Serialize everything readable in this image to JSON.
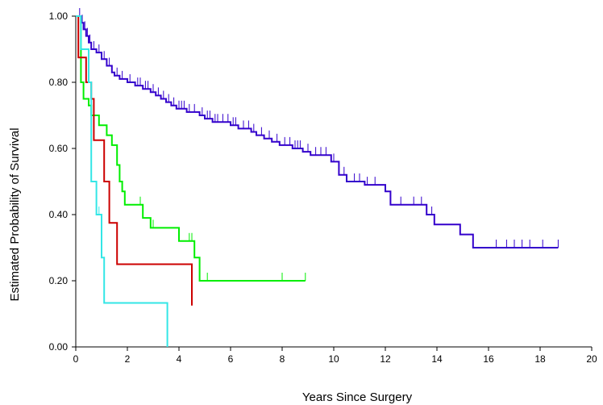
{
  "chart_data": {
    "type": "line",
    "subtype": "kaplan-meier step curves",
    "title": "",
    "xlabel": "Years  Since  Surgery",
    "ylabel": "Estimated  Probability  of  Survival",
    "xlim": [
      0,
      20
    ],
    "ylim": [
      0,
      1
    ],
    "x_ticks": [
      0,
      2,
      4,
      6,
      8,
      10,
      12,
      14,
      16,
      18,
      20
    ],
    "y_ticks": [
      0.0,
      0.2,
      0.4,
      0.6,
      0.8,
      1.0
    ],
    "x_tick_labels": [
      "0",
      "2",
      "4",
      "6",
      "8",
      "10",
      "12",
      "14",
      "16",
      "18",
      "20"
    ],
    "y_tick_labels": [
      "0.00",
      "0.20",
      "0.40",
      "0.60",
      "0.80",
      "1.00"
    ],
    "grid": false,
    "legend": "none",
    "series": [
      {
        "color": "#3300cc",
        "steps": [
          [
            0,
            1.0
          ],
          [
            0.2,
            0.98
          ],
          [
            0.3,
            0.96
          ],
          [
            0.4,
            0.94
          ],
          [
            0.5,
            0.92
          ],
          [
            0.6,
            0.9
          ],
          [
            0.8,
            0.89
          ],
          [
            1.0,
            0.87
          ],
          [
            1.2,
            0.85
          ],
          [
            1.4,
            0.83
          ],
          [
            1.5,
            0.82
          ],
          [
            1.7,
            0.81
          ],
          [
            2.0,
            0.8
          ],
          [
            2.3,
            0.79
          ],
          [
            2.6,
            0.78
          ],
          [
            2.9,
            0.77
          ],
          [
            3.1,
            0.76
          ],
          [
            3.3,
            0.75
          ],
          [
            3.5,
            0.74
          ],
          [
            3.7,
            0.73
          ],
          [
            3.9,
            0.72
          ],
          [
            4.3,
            0.71
          ],
          [
            4.8,
            0.7
          ],
          [
            5.0,
            0.69
          ],
          [
            5.3,
            0.68
          ],
          [
            6.0,
            0.67
          ],
          [
            6.3,
            0.66
          ],
          [
            6.8,
            0.65
          ],
          [
            7.0,
            0.64
          ],
          [
            7.3,
            0.63
          ],
          [
            7.6,
            0.62
          ],
          [
            7.9,
            0.61
          ],
          [
            8.4,
            0.6
          ],
          [
            8.8,
            0.59
          ],
          [
            9.1,
            0.58
          ],
          [
            9.9,
            0.56
          ],
          [
            10.2,
            0.52
          ],
          [
            10.5,
            0.5
          ],
          [
            11.2,
            0.49
          ],
          [
            12.0,
            0.47
          ],
          [
            12.2,
            0.43
          ],
          [
            13.6,
            0.4
          ],
          [
            13.9,
            0.37
          ],
          [
            14.9,
            0.34
          ],
          [
            15.4,
            0.3
          ],
          [
            18.7,
            0.3
          ]
        ],
        "censor_x": [
          0.15,
          0.25,
          0.35,
          0.45,
          0.55,
          0.7,
          0.9,
          1.1,
          1.3,
          1.6,
          1.8,
          2.1,
          2.4,
          2.5,
          2.7,
          2.8,
          3.0,
          3.2,
          3.4,
          3.6,
          3.8,
          4.0,
          4.1,
          4.2,
          4.4,
          4.6,
          4.9,
          5.1,
          5.2,
          5.4,
          5.5,
          5.7,
          5.9,
          6.1,
          6.2,
          6.5,
          6.7,
          6.9,
          7.2,
          7.5,
          7.8,
          8.1,
          8.3,
          8.5,
          8.6,
          8.7,
          9.0,
          9.3,
          9.5,
          9.7,
          10.0,
          10.4,
          10.8,
          11.0,
          11.3,
          11.6,
          12.6,
          13.1,
          13.4,
          13.8,
          16.3,
          16.7,
          17.0,
          17.3,
          17.6,
          18.1,
          18.7
        ]
      },
      {
        "color": "#00ee00",
        "steps": [
          [
            0,
            1.0
          ],
          [
            0.2,
            0.8
          ],
          [
            0.3,
            0.75
          ],
          [
            0.5,
            0.73
          ],
          [
            0.6,
            0.7
          ],
          [
            0.9,
            0.67
          ],
          [
            1.2,
            0.64
          ],
          [
            1.4,
            0.61
          ],
          [
            1.6,
            0.55
          ],
          [
            1.7,
            0.5
          ],
          [
            1.8,
            0.47
          ],
          [
            1.9,
            0.43
          ],
          [
            2.6,
            0.39
          ],
          [
            2.9,
            0.36
          ],
          [
            4.0,
            0.32
          ],
          [
            4.6,
            0.27
          ],
          [
            4.8,
            0.2
          ],
          [
            8.9,
            0.2
          ]
        ],
        "censor_x": [
          2.5,
          3.0,
          4.4,
          4.5,
          5.1,
          8.0,
          8.9
        ]
      },
      {
        "color": "#cc0000",
        "steps": [
          [
            0,
            1.0
          ],
          [
            0.1,
            0.875
          ],
          [
            0.4,
            0.8
          ],
          [
            0.6,
            0.75
          ],
          [
            0.7,
            0.625
          ],
          [
            1.1,
            0.5
          ],
          [
            1.3,
            0.375
          ],
          [
            1.6,
            0.25
          ],
          [
            4.5,
            0.25
          ],
          [
            4.5,
            0.125
          ]
        ],
        "censor_x": []
      },
      {
        "color": "#33e6e6",
        "steps": [
          [
            0,
            1.0
          ],
          [
            0.2,
            0.9
          ],
          [
            0.5,
            0.8
          ],
          [
            0.6,
            0.5
          ],
          [
            0.8,
            0.4
          ],
          [
            1.0,
            0.27
          ],
          [
            1.1,
            0.133
          ],
          [
            3.55,
            0.133
          ],
          [
            3.55,
            0.0
          ]
        ],
        "censor_x": [
          0.9
        ]
      }
    ]
  }
}
